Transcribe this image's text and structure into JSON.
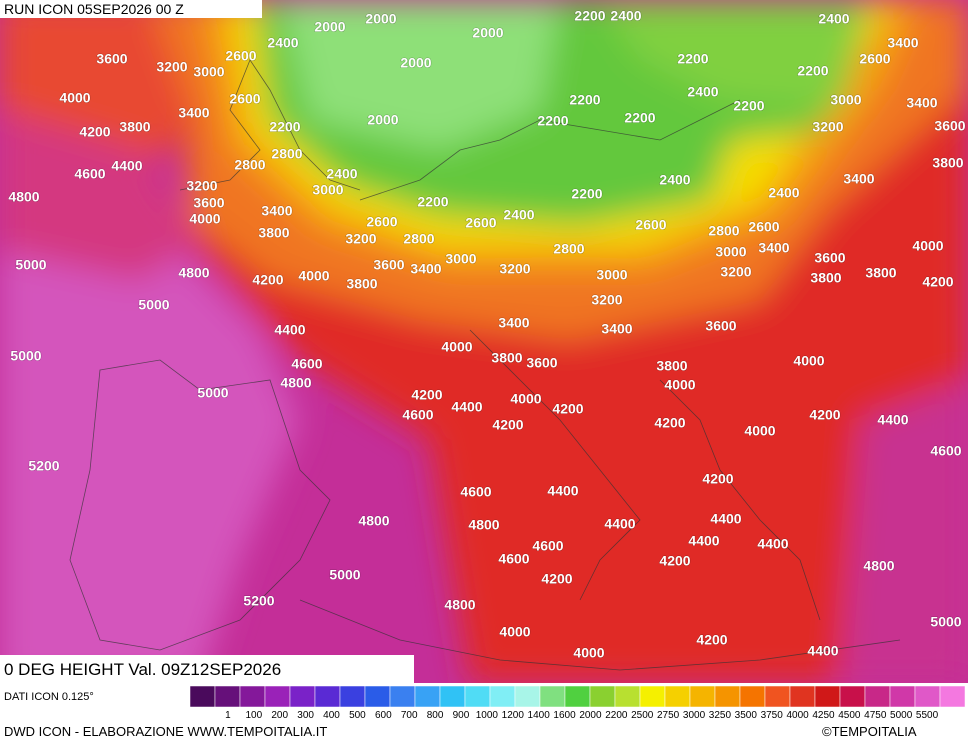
{
  "header": {
    "run": "RUN ICON 05SEP2026 00 Z",
    "field": "0 DEG HEIGHT Val. 09Z12SEP2026"
  },
  "footer": {
    "source": "DATI ICON 0.125°",
    "credit": "DWD ICON - ELABORAZIONE WWW.TEMPOITALIA.IT",
    "copyright": "©TEMPOITALIA"
  },
  "legend": {
    "labels": [
      1,
      100,
      200,
      300,
      400,
      500,
      600,
      700,
      800,
      900,
      1000,
      1200,
      1400,
      1600,
      2000,
      2200,
      2500,
      2750,
      3000,
      3250,
      3500,
      3750,
      4000,
      4250,
      4500,
      4750,
      5000,
      5500
    ],
    "colors": [
      "#4a0a5c",
      "#66107a",
      "#84189a",
      "#9a22b8",
      "#7a22c8",
      "#5a2ad4",
      "#3a40e0",
      "#2a5ce8",
      "#3a80f0",
      "#38a2f5",
      "#30c2f5",
      "#50dcf5",
      "#80eef5",
      "#a8f5e8",
      "#80e080",
      "#50d040",
      "#8ad030",
      "#b8e030",
      "#f5f000",
      "#f5d000",
      "#f5b400",
      "#f59400",
      "#f57400",
      "#f05420",
      "#e03420",
      "#d01818",
      "#c8104a",
      "#c82888",
      "#d038a8",
      "#e058c8",
      "#f478e0"
    ]
  },
  "map": {
    "contour_labels": [
      2000,
      2000,
      2000,
      2200,
      2400,
      2400,
      2400,
      2600,
      3600,
      3200,
      3000,
      2000,
      2200,
      2200,
      2600,
      3400,
      4000,
      2600,
      3400,
      2200,
      2400,
      2200,
      3000,
      3400,
      4200,
      3800,
      2200,
      2000,
      2200,
      2200,
      3200,
      3600,
      2800,
      2800,
      4400,
      4600,
      3800,
      3200,
      2400,
      3000,
      2400,
      3400,
      4800,
      3600,
      3400,
      2200,
      2400,
      2200,
      2400,
      4000,
      2600,
      2600,
      2600,
      2600,
      3800,
      3200,
      2800,
      2800,
      2800,
      3000,
      3400,
      4000,
      5000,
      3600,
      3000,
      3200,
      3000,
      3200,
      3600,
      3800,
      4800,
      4200,
      4000,
      3800,
      3400,
      3800,
      4200,
      5000,
      3200,
      4400,
      3400,
      3400,
      3600,
      5000,
      4000,
      3800,
      3600,
      4600,
      3800,
      4000,
      4800,
      4000,
      5000,
      4200,
      4000,
      4400,
      4600,
      4200,
      4200,
      4400,
      4200,
      4200,
      4000,
      4600,
      5200,
      4200,
      4400,
      4600,
      4400,
      4400,
      4800,
      4800,
      4400,
      4400,
      4600,
      4600,
      4200,
      4800,
      5000,
      4200,
      5200,
      4800,
      5000,
      4000,
      4200,
      4000,
      4400
    ]
  }
}
